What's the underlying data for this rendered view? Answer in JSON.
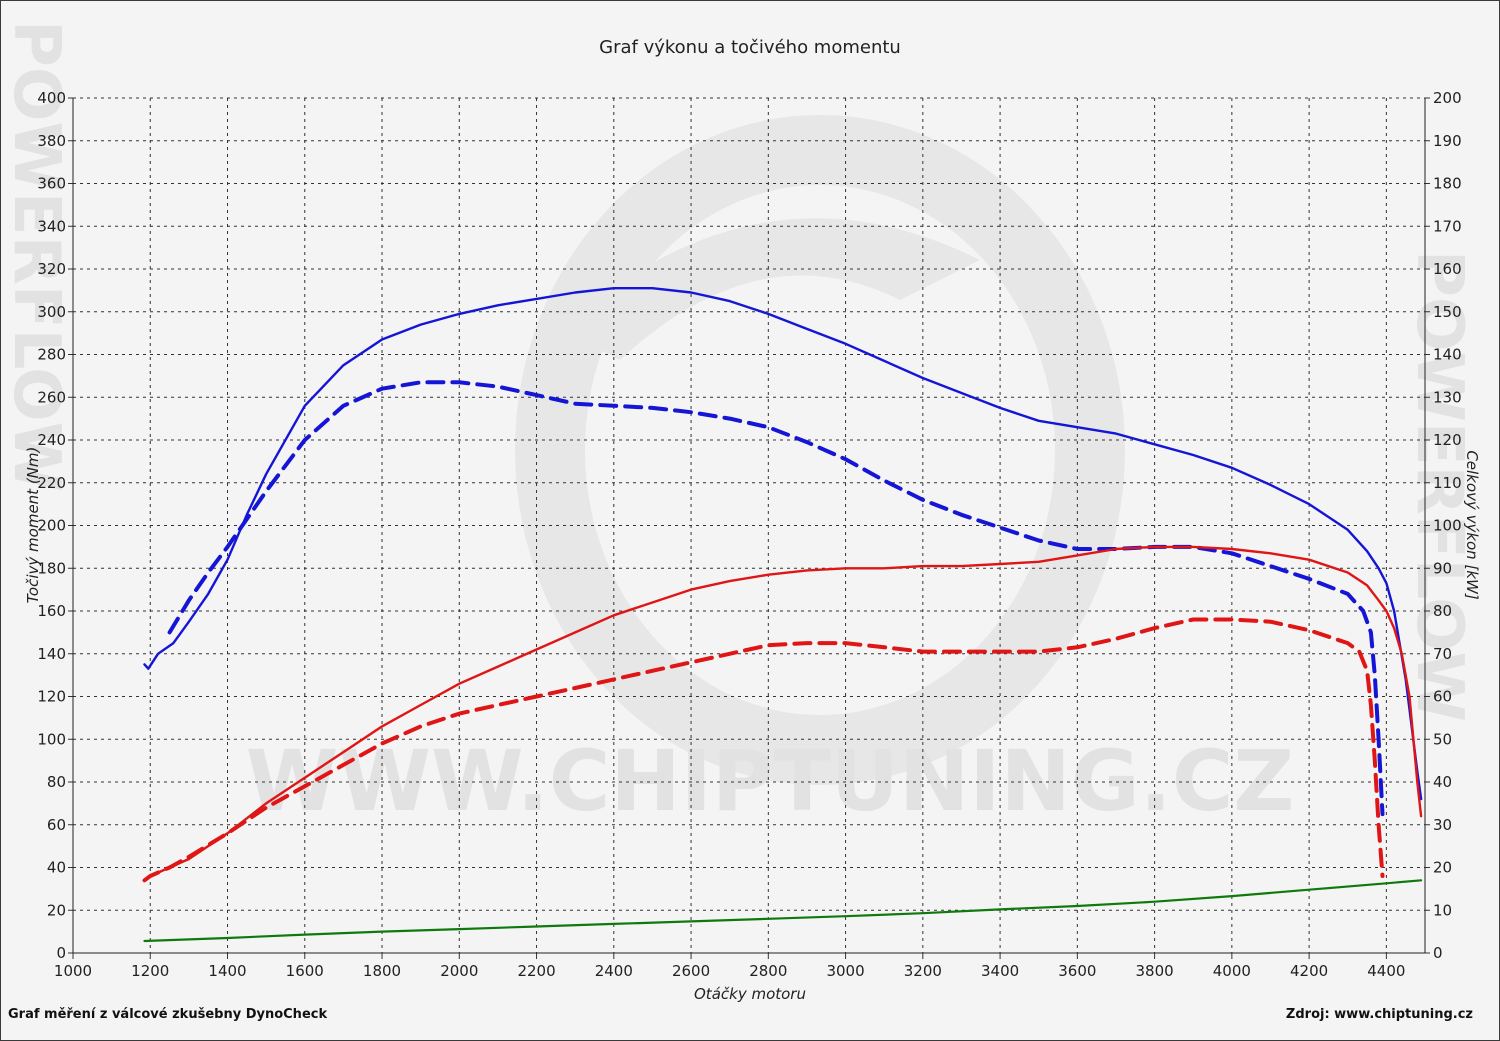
{
  "title": "Graf výkonu a točivého momentu",
  "footer_left": "Graf měření z válcové zkušebny DynoCheck",
  "footer_right": "Zdroj: www.chiptuning.cz",
  "watermark": "WWW.CHIPTUNING.CZ",
  "colors": {
    "torque": "#1515d6",
    "power": "#e01515",
    "loss": "#0e7a0e",
    "grid": "#333333"
  },
  "chart_data": {
    "type": "line",
    "title": "Graf výkonu a točivého momentu",
    "xlabel": "Otáčky motoru",
    "ylabel": "Točivý moment (Nm)",
    "y2label": "Celkový výkon [kW]",
    "xlim": [
      1000,
      4500
    ],
    "ylim": [
      0,
      400
    ],
    "y2lim": [
      0,
      200
    ],
    "xticks": [
      1000,
      1200,
      1400,
      1600,
      1800,
      2000,
      2200,
      2400,
      2600,
      2800,
      3000,
      3200,
      3400,
      3600,
      3800,
      4000,
      4200,
      4400
    ],
    "yticks": [
      0,
      20,
      40,
      60,
      80,
      100,
      120,
      140,
      160,
      180,
      200,
      220,
      240,
      260,
      280,
      300,
      320,
      340,
      360,
      380,
      400
    ],
    "y2ticks": [
      0,
      10,
      20,
      30,
      40,
      50,
      60,
      70,
      80,
      90,
      100,
      110,
      120,
      130,
      140,
      150,
      160,
      170,
      180,
      190,
      200
    ],
    "grid": true,
    "series": [
      {
        "axis": "left",
        "color": "#1515d6",
        "style": "solid",
        "x": [
          1185,
          1195,
          1220,
          1260,
          1300,
          1350,
          1400,
          1450,
          1500,
          1600,
          1700,
          1800,
          1900,
          2000,
          2100,
          2200,
          2300,
          2400,
          2500,
          2600,
          2700,
          2800,
          2900,
          3000,
          3100,
          3200,
          3300,
          3400,
          3500,
          3600,
          3700,
          3800,
          3900,
          4000,
          4100,
          4200,
          4300,
          4350,
          4380,
          4400,
          4420,
          4450,
          4480,
          4490
        ],
        "y": [
          135,
          133,
          140,
          145,
          155,
          168,
          184,
          205,
          224,
          256,
          275,
          287,
          294,
          299,
          303,
          306,
          309,
          311,
          311,
          309,
          305,
          299,
          292,
          285,
          277,
          269,
          262,
          255,
          249,
          246,
          243,
          238,
          233,
          227,
          219,
          210,
          198,
          188,
          180,
          173,
          160,
          128,
          85,
          72
        ]
      },
      {
        "axis": "left",
        "color": "#1515d6",
        "style": "dashed",
        "x": [
          1250,
          1300,
          1350,
          1400,
          1450,
          1500,
          1600,
          1700,
          1800,
          1900,
          2000,
          2100,
          2200,
          2300,
          2400,
          2500,
          2600,
          2700,
          2800,
          2900,
          3000,
          3100,
          3200,
          3300,
          3400,
          3500,
          3600,
          3700,
          3800,
          3900,
          4000,
          4100,
          4200,
          4300,
          4340,
          4360,
          4370,
          4380,
          4390
        ],
        "y": [
          150,
          165,
          178,
          190,
          203,
          216,
          240,
          256,
          264,
          267,
          267,
          265,
          261,
          257,
          256,
          255,
          253,
          250,
          246,
          239,
          231,
          221,
          212,
          205,
          199,
          193,
          189,
          189,
          190,
          190,
          187,
          181,
          175,
          168,
          160,
          150,
          130,
          100,
          65
        ]
      },
      {
        "axis": "right",
        "color": "#e01515",
        "style": "solid",
        "x": [
          1185,
          1200,
          1250,
          1300,
          1400,
          1500,
          1600,
          1700,
          1800,
          1900,
          2000,
          2100,
          2200,
          2300,
          2400,
          2500,
          2600,
          2700,
          2800,
          2900,
          3000,
          3100,
          3200,
          3300,
          3400,
          3500,
          3600,
          3700,
          3800,
          3900,
          4000,
          4100,
          4200,
          4300,
          4350,
          4380,
          4400,
          4420,
          4440,
          4460,
          4480,
          4490
        ],
        "y": [
          17,
          18,
          20,
          22,
          28,
          35,
          41,
          47,
          53,
          58,
          63,
          67,
          71,
          75,
          79,
          82,
          85,
          87,
          88.5,
          89.5,
          90,
          90,
          90.5,
          90.5,
          91,
          91.5,
          93,
          94.5,
          95,
          95,
          94.5,
          93.5,
          92,
          89,
          86,
          82.5,
          80,
          76,
          70,
          60,
          40,
          32
        ]
      },
      {
        "axis": "right",
        "color": "#e01515",
        "style": "dashed",
        "x": [
          1185,
          1200,
          1250,
          1300,
          1400,
          1500,
          1600,
          1700,
          1800,
          1900,
          2000,
          2100,
          2200,
          2300,
          2400,
          2500,
          2600,
          2700,
          2800,
          2900,
          3000,
          3100,
          3200,
          3300,
          3400,
          3500,
          3600,
          3700,
          3800,
          3900,
          4000,
          4100,
          4200,
          4300,
          4330,
          4350,
          4360,
          4370,
          4380,
          4390
        ],
        "y": [
          17,
          18,
          20,
          22.5,
          28,
          34,
          39,
          44,
          49,
          53,
          56,
          58,
          60,
          62,
          64,
          66,
          68,
          70,
          72,
          72.5,
          72.5,
          71.5,
          70.5,
          70.5,
          70.5,
          70.5,
          71.5,
          73.5,
          76,
          78,
          78,
          77.5,
          75.5,
          72.5,
          70.5,
          66,
          58,
          45,
          30,
          18
        ]
      },
      {
        "axis": "right",
        "color": "#0e7a0e",
        "style": "solid",
        "x": [
          1185,
          1400,
          1600,
          1800,
          2000,
          2200,
          2400,
          2600,
          2800,
          3000,
          3200,
          3400,
          3600,
          3800,
          4000,
          4200,
          4400,
          4490
        ],
        "y": [
          2.8,
          3.5,
          4.3,
          5,
          5.6,
          6.2,
          6.8,
          7.4,
          8,
          8.6,
          9.3,
          10.2,
          11,
          12,
          13.3,
          14.8,
          16.3,
          17
        ]
      }
    ]
  }
}
